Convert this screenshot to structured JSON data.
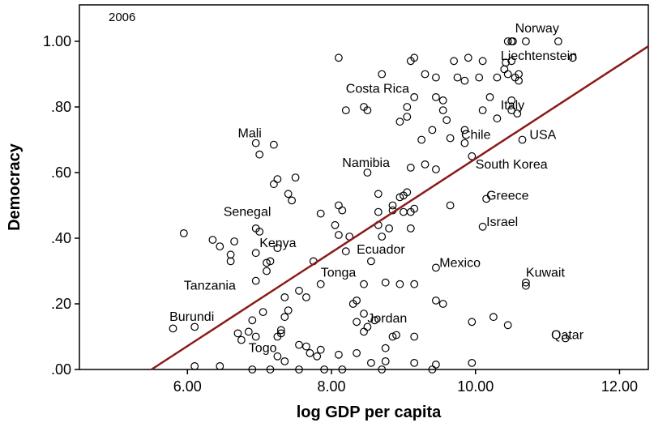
{
  "chart_data": {
    "type": "scatter",
    "title": "",
    "year_label": "2006",
    "xlabel": "log GDP per capita",
    "ylabel": "Democracy",
    "xlim": [
      4.5,
      12.4
    ],
    "ylim": [
      0.0,
      1.0
    ],
    "x_ticks": [
      6.0,
      8.0,
      10.0,
      12.0
    ],
    "x_tick_labels": [
      "6.00",
      "8.00",
      "10.00",
      "12.00"
    ],
    "y_ticks": [
      0.0,
      0.2,
      0.4,
      0.6,
      0.8,
      1.0
    ],
    "y_tick_labels": [
      ".00",
      ".20",
      ".40",
      ".60",
      ".80",
      "1.00"
    ],
    "grid": false,
    "colors": {
      "marker": "#000000",
      "fit_line": "#8b1a1a"
    },
    "fit_line": {
      "x": [
        5.5,
        12.4
      ],
      "y": [
        0.0,
        0.985
      ]
    },
    "annotations": [
      {
        "text": "Norway",
        "x": 10.55,
        "y": 1.04
      },
      {
        "text": "Liechtenstein",
        "x": 10.35,
        "y": 0.955
      },
      {
        "text": "Costa Rica",
        "x": 8.2,
        "y": 0.855
      },
      {
        "text": "Italy",
        "x": 10.35,
        "y": 0.805
      },
      {
        "text": "Mali",
        "x": 6.7,
        "y": 0.72
      },
      {
        "text": "Chile",
        "x": 9.8,
        "y": 0.715
      },
      {
        "text": "USA",
        "x": 10.75,
        "y": 0.715
      },
      {
        "text": "Namibia",
        "x": 8.15,
        "y": 0.63
      },
      {
        "text": "South Korea",
        "x": 10.0,
        "y": 0.625
      },
      {
        "text": "Greece",
        "x": 10.15,
        "y": 0.53
      },
      {
        "text": "Senegal",
        "x": 6.5,
        "y": 0.48
      },
      {
        "text": "Israel",
        "x": 10.15,
        "y": 0.45
      },
      {
        "text": "Kenya",
        "x": 7.0,
        "y": 0.385
      },
      {
        "text": "Ecuador",
        "x": 8.35,
        "y": 0.365
      },
      {
        "text": "Mexico",
        "x": 9.5,
        "y": 0.325
      },
      {
        "text": "Tonga",
        "x": 7.85,
        "y": 0.295
      },
      {
        "text": "Kuwait",
        "x": 10.7,
        "y": 0.295
      },
      {
        "text": "Tanzania",
        "x": 5.95,
        "y": 0.255
      },
      {
        "text": "Burundi",
        "x": 5.75,
        "y": 0.16
      },
      {
        "text": "Jordan",
        "x": 8.5,
        "y": 0.155
      },
      {
        "text": "Qatar",
        "x": 11.05,
        "y": 0.105
      },
      {
        "text": "Togo",
        "x": 6.85,
        "y": 0.065
      }
    ],
    "points": [
      [
        10.45,
        1.0
      ],
      [
        10.5,
        1.0
      ],
      [
        10.52,
        1.0
      ],
      [
        10.7,
        1.0
      ],
      [
        11.15,
        1.0
      ],
      [
        10.42,
        0.935
      ],
      [
        10.5,
        0.94
      ],
      [
        11.35,
        0.95
      ],
      [
        10.45,
        0.9
      ],
      [
        10.55,
        0.89
      ],
      [
        10.6,
        0.9
      ],
      [
        10.3,
        0.89
      ],
      [
        10.4,
        0.915
      ],
      [
        10.6,
        0.88
      ],
      [
        8.1,
        0.95
      ],
      [
        9.1,
        0.94
      ],
      [
        9.15,
        0.95
      ],
      [
        9.7,
        0.94
      ],
      [
        9.9,
        0.95
      ],
      [
        10.1,
        0.94
      ],
      [
        8.7,
        0.9
      ],
      [
        9.3,
        0.9
      ],
      [
        9.45,
        0.89
      ],
      [
        9.75,
        0.89
      ],
      [
        9.85,
        0.88
      ],
      [
        10.05,
        0.89
      ],
      [
        9.15,
        0.83
      ],
      [
        9.45,
        0.83
      ],
      [
        9.55,
        0.82
      ],
      [
        10.2,
        0.83
      ],
      [
        10.5,
        0.82
      ],
      [
        10.1,
        0.79
      ],
      [
        8.2,
        0.79
      ],
      [
        8.45,
        0.8
      ],
      [
        8.5,
        0.79
      ],
      [
        9.05,
        0.8
      ],
      [
        9.55,
        0.79
      ],
      [
        10.5,
        0.79
      ],
      [
        10.58,
        0.78
      ],
      [
        8.95,
        0.755
      ],
      [
        9.05,
        0.77
      ],
      [
        9.6,
        0.76
      ],
      [
        10.3,
        0.765
      ],
      [
        9.4,
        0.73
      ],
      [
        9.85,
        0.73
      ],
      [
        9.25,
        0.7
      ],
      [
        9.65,
        0.705
      ],
      [
        9.85,
        0.69
      ],
      [
        10.65,
        0.7
      ],
      [
        6.95,
        0.69
      ],
      [
        7.2,
        0.685
      ],
      [
        7.0,
        0.655
      ],
      [
        9.95,
        0.65
      ],
      [
        9.3,
        0.625
      ],
      [
        9.45,
        0.61
      ],
      [
        8.5,
        0.6
      ],
      [
        9.1,
        0.615
      ],
      [
        7.25,
        0.58
      ],
      [
        7.5,
        0.585
      ],
      [
        7.2,
        0.565
      ],
      [
        7.4,
        0.535
      ],
      [
        7.45,
        0.515
      ],
      [
        8.65,
        0.535
      ],
      [
        8.95,
        0.525
      ],
      [
        9.05,
        0.54
      ],
      [
        9.0,
        0.53
      ],
      [
        8.1,
        0.5
      ],
      [
        8.85,
        0.5
      ],
      [
        9.15,
        0.49
      ],
      [
        9.65,
        0.5
      ],
      [
        10.15,
        0.52
      ],
      [
        7.85,
        0.475
      ],
      [
        8.15,
        0.485
      ],
      [
        8.65,
        0.48
      ],
      [
        8.85,
        0.485
      ],
      [
        9.0,
        0.48
      ],
      [
        9.1,
        0.48
      ],
      [
        6.95,
        0.43
      ],
      [
        7.0,
        0.42
      ],
      [
        8.05,
        0.44
      ],
      [
        8.1,
        0.41
      ],
      [
        8.65,
        0.44
      ],
      [
        8.8,
        0.43
      ],
      [
        9.1,
        0.43
      ],
      [
        10.1,
        0.435
      ],
      [
        5.95,
        0.415
      ],
      [
        6.35,
        0.395
      ],
      [
        6.45,
        0.375
      ],
      [
        6.65,
        0.39
      ],
      [
        8.25,
        0.405
      ],
      [
        8.7,
        0.405
      ],
      [
        6.6,
        0.35
      ],
      [
        6.6,
        0.33
      ],
      [
        6.95,
        0.355
      ],
      [
        7.15,
        0.33
      ],
      [
        7.25,
        0.37
      ],
      [
        8.2,
        0.36
      ],
      [
        7.1,
        0.325
      ],
      [
        7.1,
        0.3
      ],
      [
        7.75,
        0.33
      ],
      [
        8.55,
        0.33
      ],
      [
        9.45,
        0.31
      ],
      [
        6.95,
        0.27
      ],
      [
        7.85,
        0.26
      ],
      [
        8.45,
        0.26
      ],
      [
        8.75,
        0.265
      ],
      [
        8.95,
        0.26
      ],
      [
        9.15,
        0.26
      ],
      [
        10.7,
        0.255
      ],
      [
        10.7,
        0.265
      ],
      [
        7.55,
        0.24
      ],
      [
        7.65,
        0.22
      ],
      [
        7.35,
        0.22
      ],
      [
        8.3,
        0.2
      ],
      [
        8.35,
        0.21
      ],
      [
        9.45,
        0.21
      ],
      [
        9.55,
        0.2
      ],
      [
        7.05,
        0.175
      ],
      [
        7.4,
        0.18
      ],
      [
        7.35,
        0.16
      ],
      [
        8.45,
        0.17
      ],
      [
        8.6,
        0.15
      ],
      [
        6.9,
        0.15
      ],
      [
        5.8,
        0.125
      ],
      [
        6.1,
        0.13
      ],
      [
        7.3,
        0.12
      ],
      [
        8.35,
        0.145
      ],
      [
        8.5,
        0.13
      ],
      [
        8.45,
        0.115
      ],
      [
        9.95,
        0.145
      ],
      [
        10.25,
        0.16
      ],
      [
        10.45,
        0.135
      ],
      [
        6.7,
        0.11
      ],
      [
        6.85,
        0.115
      ],
      [
        6.75,
        0.09
      ],
      [
        6.95,
        0.1
      ],
      [
        7.3,
        0.11
      ],
      [
        7.25,
        0.1
      ],
      [
        8.85,
        0.1
      ],
      [
        8.9,
        0.105
      ],
      [
        9.15,
        0.1
      ],
      [
        11.25,
        0.095
      ],
      [
        7.65,
        0.07
      ],
      [
        7.55,
        0.075
      ],
      [
        7.7,
        0.05
      ],
      [
        7.85,
        0.06
      ],
      [
        8.35,
        0.05
      ],
      [
        8.75,
        0.065
      ],
      [
        7.25,
        0.04
      ],
      [
        7.35,
        0.025
      ],
      [
        7.8,
        0.04
      ],
      [
        8.1,
        0.045
      ],
      [
        8.55,
        0.02
      ],
      [
        8.75,
        0.025
      ],
      [
        9.15,
        0.02
      ],
      [
        9.45,
        0.015
      ],
      [
        9.95,
        0.02
      ],
      [
        6.1,
        0.01
      ],
      [
        6.45,
        0.01
      ],
      [
        6.9,
        0.0
      ],
      [
        7.15,
        0.0
      ],
      [
        7.55,
        0.0
      ],
      [
        7.9,
        0.0
      ],
      [
        8.15,
        0.0
      ],
      [
        8.7,
        0.0
      ],
      [
        9.4,
        0.0
      ]
    ]
  }
}
